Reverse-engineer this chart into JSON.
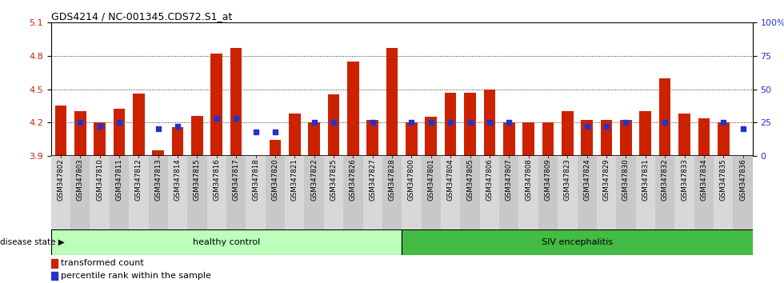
{
  "title": "GDS4214 / NC-001345.CDS72.S1_at",
  "samples": [
    "GSM347802",
    "GSM347803",
    "GSM347810",
    "GSM347811",
    "GSM347812",
    "GSM347813",
    "GSM347814",
    "GSM347815",
    "GSM347816",
    "GSM347817",
    "GSM347818",
    "GSM347820",
    "GSM347821",
    "GSM347822",
    "GSM347825",
    "GSM347826",
    "GSM347827",
    "GSM347828",
    "GSM347800",
    "GSM347801",
    "GSM347804",
    "GSM347805",
    "GSM347806",
    "GSM347807",
    "GSM347808",
    "GSM347809",
    "GSM347823",
    "GSM347824",
    "GSM347829",
    "GSM347830",
    "GSM347831",
    "GSM347832",
    "GSM347833",
    "GSM347834",
    "GSM347835",
    "GSM347836"
  ],
  "transformed_count": [
    4.35,
    4.3,
    4.2,
    4.32,
    4.46,
    3.95,
    4.16,
    4.26,
    4.82,
    4.87,
    3.9,
    4.04,
    4.28,
    4.2,
    4.45,
    4.75,
    4.22,
    4.87,
    4.2,
    4.25,
    4.47,
    4.47,
    4.5,
    4.2,
    4.2,
    4.2,
    4.3,
    4.22,
    4.22,
    4.22,
    4.3,
    4.6,
    4.28,
    4.24,
    4.2,
    3.9
  ],
  "percentile_rank": [
    null,
    25,
    22,
    25,
    null,
    20,
    22,
    null,
    28,
    28,
    18,
    18,
    null,
    25,
    25,
    null,
    25,
    null,
    25,
    25,
    25,
    25,
    25,
    25,
    null,
    null,
    null,
    22,
    22,
    25,
    null,
    25,
    null,
    null,
    25,
    20
  ],
  "healthy_count": 18,
  "ylim_left": [
    3.9,
    5.1
  ],
  "ylim_right": [
    0,
    100
  ],
  "yticks_left": [
    3.9,
    4.2,
    4.5,
    4.8,
    5.1
  ],
  "yticks_right": [
    0,
    25,
    50,
    75,
    100
  ],
  "bar_color": "#CC2200",
  "dot_color": "#2233CC",
  "healthy_color": "#BBFFBB",
  "siv_color": "#44BB44",
  "col_bg_even": "#D8D8D8",
  "col_bg_odd": "#C8C8C8",
  "healthy_label": "healthy control",
  "siv_label": "SIV encephalitis",
  "disease_state_label": "disease state",
  "legend_bar_label": "transformed count",
  "legend_dot_label": "percentile rank within the sample"
}
